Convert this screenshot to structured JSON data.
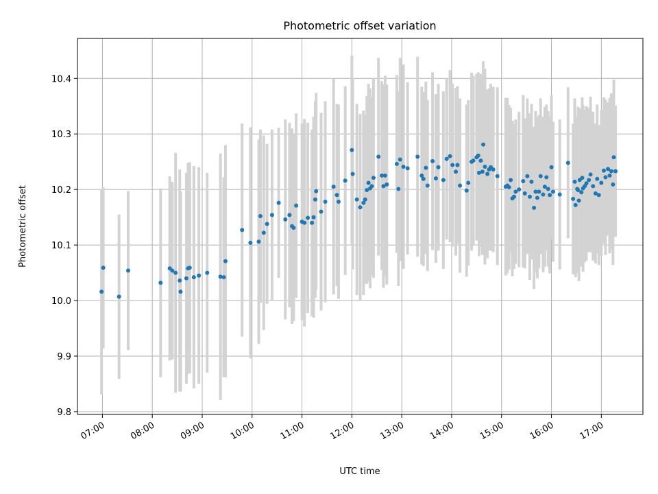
{
  "chart_data": {
    "type": "scatter",
    "title": "Photometric offset variation",
    "xlabel": "UTC time",
    "ylabel": "Photometric offset",
    "xlim": [
      "06:30",
      "17:50"
    ],
    "ylim": [
      9.795,
      10.472
    ],
    "x_ticks": [
      "07:00",
      "08:00",
      "09:00",
      "10:00",
      "11:00",
      "12:00",
      "13:00",
      "14:00",
      "15:00",
      "16:00",
      "17:00"
    ],
    "y_ticks": [
      9.8,
      9.9,
      10.0,
      10.1,
      10.2,
      10.3,
      10.4
    ],
    "y_tick_labels": [
      "9.8",
      "9.9",
      "10.0",
      "10.1",
      "10.2",
      "10.3",
      "10.4"
    ],
    "grid": true,
    "colors": {
      "point": "#1f77b4",
      "error_bar": "#d3d3d3"
    },
    "series": [
      {
        "points": [
          {
            "t": "06:59",
            "y": 10.016,
            "err": 0.185
          },
          {
            "t": "07:01",
            "y": 10.059,
            "err": 0.145
          },
          {
            "t": "07:20",
            "y": 10.007,
            "err": 0.148
          },
          {
            "t": "07:31",
            "y": 10.054,
            "err": 0.143
          },
          {
            "t": "08:10",
            "y": 10.032,
            "err": 0.17
          },
          {
            "t": "08:21",
            "y": 10.058,
            "err": 0.166
          },
          {
            "t": "08:24",
            "y": 10.054,
            "err": 0.16
          },
          {
            "t": "08:28",
            "y": 10.05,
            "err": 0.216
          },
          {
            "t": "08:33",
            "y": 10.036,
            "err": 0.2
          },
          {
            "t": "08:34",
            "y": 10.016,
            "err": 0.18
          },
          {
            "t": "08:41",
            "y": 10.04,
            "err": 0.19
          },
          {
            "t": "08:43",
            "y": 10.058,
            "err": 0.19
          },
          {
            "t": "08:45",
            "y": 10.059,
            "err": 0.19
          },
          {
            "t": "08:50",
            "y": 10.042,
            "err": 0.2
          },
          {
            "t": "08:56",
            "y": 10.045,
            "err": 0.195
          },
          {
            "t": "09:06",
            "y": 10.05,
            "err": 0.18
          },
          {
            "t": "09:22",
            "y": 10.043,
            "err": 0.222
          },
          {
            "t": "09:26",
            "y": 10.042,
            "err": 0.18
          },
          {
            "t": "09:28",
            "y": 10.071,
            "err": 0.209
          },
          {
            "t": "09:48",
            "y": 10.127,
            "err": 0.192
          },
          {
            "t": "09:58",
            "y": 10.104,
            "err": 0.208
          },
          {
            "t": "10:08",
            "y": 10.106,
            "err": 0.184
          },
          {
            "t": "10:10",
            "y": 10.152,
            "err": 0.156
          },
          {
            "t": "10:14",
            "y": 10.122,
            "err": 0.175
          },
          {
            "t": "10:18",
            "y": 10.138,
            "err": 0.144
          },
          {
            "t": "10:24",
            "y": 10.154,
            "err": 0.154
          },
          {
            "t": "10:32",
            "y": 10.176,
            "err": 0.135
          },
          {
            "t": "10:40",
            "y": 10.146,
            "err": 0.18
          },
          {
            "t": "10:45",
            "y": 10.154,
            "err": 0.166
          },
          {
            "t": "10:48",
            "y": 10.134,
            "err": 0.176
          },
          {
            "t": "10:50",
            "y": 10.131,
            "err": 0.168
          },
          {
            "t": "10:53",
            "y": 10.171,
            "err": 0.166
          },
          {
            "t": "11:00",
            "y": 10.142,
            "err": 0.177
          },
          {
            "t": "11:03",
            "y": 10.14,
            "err": 0.187
          },
          {
            "t": "11:07",
            "y": 10.149,
            "err": 0.171
          },
          {
            "t": "11:12",
            "y": 10.14,
            "err": 0.168
          },
          {
            "t": "11:14",
            "y": 10.15,
            "err": 0.181
          },
          {
            "t": "11:16",
            "y": 10.182,
            "err": 0.177
          },
          {
            "t": "11:17",
            "y": 10.197,
            "err": 0.177
          },
          {
            "t": "11:23",
            "y": 10.16,
            "err": 0.178
          },
          {
            "t": "11:28",
            "y": 10.178,
            "err": 0.181
          },
          {
            "t": "11:38",
            "y": 10.205,
            "err": 0.194
          },
          {
            "t": "11:42",
            "y": 10.19,
            "err": 0.164
          },
          {
            "t": "11:44",
            "y": 10.178,
            "err": 0.175
          },
          {
            "t": "11:52",
            "y": 10.216,
            "err": 0.17
          },
          {
            "t": "12:00",
            "y": 10.271,
            "err": 0.17
          },
          {
            "t": "12:01",
            "y": 10.228,
            "err": 0.172
          },
          {
            "t": "12:06",
            "y": 10.182,
            "err": 0.172
          },
          {
            "t": "12:10",
            "y": 10.168,
            "err": 0.168
          },
          {
            "t": "12:14",
            "y": 10.176,
            "err": 0.166
          },
          {
            "t": "12:16",
            "y": 10.182,
            "err": 0.152
          },
          {
            "t": "12:18",
            "y": 10.199,
            "err": 0.169
          },
          {
            "t": "12:20",
            "y": 10.212,
            "err": 0.178
          },
          {
            "t": "12:22",
            "y": 10.202,
            "err": 0.18
          },
          {
            "t": "12:24",
            "y": 10.206,
            "err": 0.16
          },
          {
            "t": "12:26",
            "y": 10.221,
            "err": 0.18
          },
          {
            "t": "12:32",
            "y": 10.259,
            "err": 0.178
          },
          {
            "t": "12:36",
            "y": 10.225,
            "err": 0.17
          },
          {
            "t": "12:38",
            "y": 10.206,
            "err": 0.183
          },
          {
            "t": "12:40",
            "y": 10.225,
            "err": 0.18
          },
          {
            "t": "12:42",
            "y": 10.209,
            "err": 0.18
          },
          {
            "t": "12:54",
            "y": 10.246,
            "err": 0.16
          },
          {
            "t": "12:56",
            "y": 10.201,
            "err": 0.175
          },
          {
            "t": "12:58",
            "y": 10.254,
            "err": 0.183
          },
          {
            "t": "13:02",
            "y": 10.241,
            "err": 0.184
          },
          {
            "t": "13:07",
            "y": 10.238,
            "err": 0.155
          },
          {
            "t": "13:19",
            "y": 10.259,
            "err": 0.18
          },
          {
            "t": "13:24",
            "y": 10.225,
            "err": 0.16
          },
          {
            "t": "13:26",
            "y": 10.219,
            "err": 0.157
          },
          {
            "t": "13:29",
            "y": 10.239,
            "err": 0.155
          },
          {
            "t": "13:31",
            "y": 10.207,
            "err": 0.154
          },
          {
            "t": "13:37",
            "y": 10.251,
            "err": 0.16
          },
          {
            "t": "13:41",
            "y": 10.22,
            "err": 0.152
          },
          {
            "t": "13:44",
            "y": 10.24,
            "err": 0.15
          },
          {
            "t": "13:50",
            "y": 10.217,
            "err": 0.16
          },
          {
            "t": "13:54",
            "y": 10.255,
            "err": 0.145
          },
          {
            "t": "13:58",
            "y": 10.26,
            "err": 0.155
          },
          {
            "t": "14:01",
            "y": 10.244,
            "err": 0.147
          },
          {
            "t": "14:05",
            "y": 10.232,
            "err": 0.151
          },
          {
            "t": "14:07",
            "y": 10.244,
            "err": 0.142
          },
          {
            "t": "14:10",
            "y": 10.207,
            "err": 0.157
          },
          {
            "t": "14:18",
            "y": 10.198,
            "err": 0.155
          },
          {
            "t": "14:20",
            "y": 10.212,
            "err": 0.149
          },
          {
            "t": "14:24",
            "y": 10.25,
            "err": 0.16
          },
          {
            "t": "14:26",
            "y": 10.252,
            "err": 0.153
          },
          {
            "t": "14:30",
            "y": 10.258,
            "err": 0.15
          },
          {
            "t": "14:32",
            "y": 10.261,
            "err": 0.15
          },
          {
            "t": "14:33",
            "y": 10.23,
            "err": 0.15
          },
          {
            "t": "14:35",
            "y": 10.252,
            "err": 0.156
          },
          {
            "t": "14:37",
            "y": 10.232,
            "err": 0.15
          },
          {
            "t": "14:38",
            "y": 10.281,
            "err": 0.15
          },
          {
            "t": "14:40",
            "y": 10.241,
            "err": 0.176
          },
          {
            "t": "14:43",
            "y": 10.228,
            "err": 0.152
          },
          {
            "t": "14:45",
            "y": 10.236,
            "err": 0.146
          },
          {
            "t": "14:47",
            "y": 10.24,
            "err": 0.15
          },
          {
            "t": "14:50",
            "y": 10.236,
            "err": 0.149
          },
          {
            "t": "14:55",
            "y": 10.224,
            "err": 0.16
          },
          {
            "t": "15:05",
            "y": 10.205,
            "err": 0.16
          },
          {
            "t": "15:07",
            "y": 10.207,
            "err": 0.158
          },
          {
            "t": "15:09",
            "y": 10.204,
            "err": 0.148
          },
          {
            "t": "15:11",
            "y": 10.217,
            "err": 0.13
          },
          {
            "t": "15:13",
            "y": 10.184,
            "err": 0.14
          },
          {
            "t": "15:15",
            "y": 10.187,
            "err": 0.13
          },
          {
            "t": "15:17",
            "y": 10.196,
            "err": 0.13
          },
          {
            "t": "15:21",
            "y": 10.2,
            "err": 0.14
          },
          {
            "t": "15:26",
            "y": 10.215,
            "err": 0.155
          },
          {
            "t": "15:28",
            "y": 10.193,
            "err": 0.135
          },
          {
            "t": "15:31",
            "y": 10.224,
            "err": 0.14
          },
          {
            "t": "15:34",
            "y": 10.187,
            "err": 0.15
          },
          {
            "t": "15:36",
            "y": 10.214,
            "err": 0.14
          },
          {
            "t": "15:39",
            "y": 10.167,
            "err": 0.146
          },
          {
            "t": "15:41",
            "y": 10.196,
            "err": 0.145
          },
          {
            "t": "15:43",
            "y": 10.185,
            "err": 0.145
          },
          {
            "t": "15:45",
            "y": 10.196,
            "err": 0.138
          },
          {
            "t": "15:47",
            "y": 10.224,
            "err": 0.14
          },
          {
            "t": "15:50",
            "y": 10.191,
            "err": 0.14
          },
          {
            "t": "15:52",
            "y": 10.205,
            "err": 0.144
          },
          {
            "t": "15:54",
            "y": 10.222,
            "err": 0.131
          },
          {
            "t": "15:56",
            "y": 10.201,
            "err": 0.14
          },
          {
            "t": "15:58",
            "y": 10.19,
            "err": 0.141
          },
          {
            "t": "16:00",
            "y": 10.24,
            "err": 0.13
          },
          {
            "t": "16:02",
            "y": 10.196,
            "err": 0.126
          },
          {
            "t": "16:10",
            "y": 10.191,
            "err": 0.135
          },
          {
            "t": "16:20",
            "y": 10.248,
            "err": 0.136
          },
          {
            "t": "16:26",
            "y": 10.183,
            "err": 0.136
          },
          {
            "t": "16:28",
            "y": 10.214,
            "err": 0.15
          },
          {
            "t": "16:29",
            "y": 10.172,
            "err": 0.13
          },
          {
            "t": "16:31",
            "y": 10.201,
            "err": 0.13
          },
          {
            "t": "16:32",
            "y": 10.199,
            "err": 0.15
          },
          {
            "t": "16:33",
            "y": 10.18,
            "err": 0.145
          },
          {
            "t": "16:34",
            "y": 10.217,
            "err": 0.129
          },
          {
            "t": "16:36",
            "y": 10.195,
            "err": 0.134
          },
          {
            "t": "16:37",
            "y": 10.221,
            "err": 0.145
          },
          {
            "t": "16:38",
            "y": 10.202,
            "err": 0.15
          },
          {
            "t": "16:40",
            "y": 10.206,
            "err": 0.137
          },
          {
            "t": "16:42",
            "y": 10.211,
            "err": 0.139
          },
          {
            "t": "16:45",
            "y": 10.217,
            "err": 0.13
          },
          {
            "t": "16:47",
            "y": 10.227,
            "err": 0.14
          },
          {
            "t": "16:50",
            "y": 10.206,
            "err": 0.134
          },
          {
            "t": "16:53",
            "y": 10.193,
            "err": 0.126
          },
          {
            "t": "16:55",
            "y": 10.219,
            "err": 0.134
          },
          {
            "t": "16:57",
            "y": 10.19,
            "err": 0.126
          },
          {
            "t": "17:00",
            "y": 10.212,
            "err": 0.131
          },
          {
            "t": "17:03",
            "y": 10.234,
            "err": 0.132
          },
          {
            "t": "17:05",
            "y": 10.222,
            "err": 0.14
          },
          {
            "t": "17:08",
            "y": 10.237,
            "err": 0.12
          },
          {
            "t": "17:10",
            "y": 10.225,
            "err": 0.14
          },
          {
            "t": "17:12",
            "y": 10.233,
            "err": 0.14
          },
          {
            "t": "17:14",
            "y": 10.209,
            "err": 0.145
          },
          {
            "t": "17:15",
            "y": 10.258,
            "err": 0.14
          },
          {
            "t": "17:17",
            "y": 10.233,
            "err": 0.118
          }
        ]
      }
    ]
  }
}
